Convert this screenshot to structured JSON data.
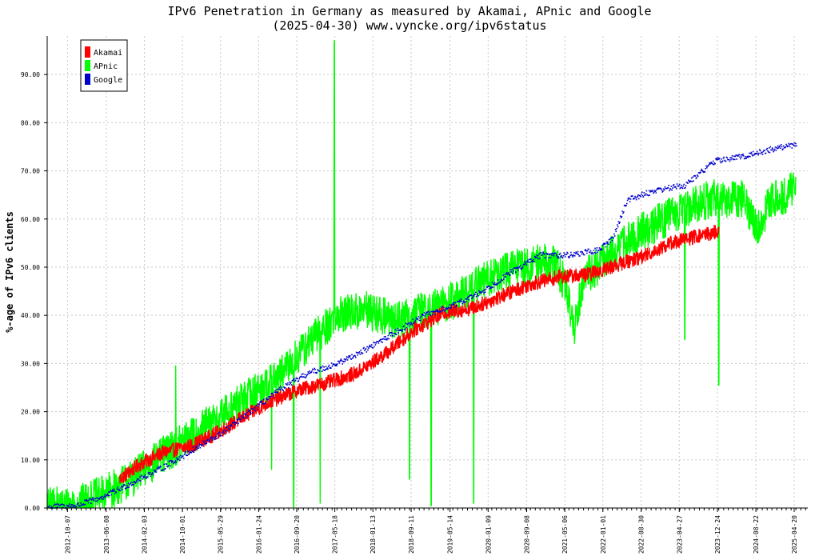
{
  "chart_data": {
    "type": "line",
    "title": "IPv6 Penetration in Germany as measured by Akamai, APnic and Google",
    "subtitle": "(2025-04-30) www.vyncke.org/ipv6status",
    "ylabel": "%-age of IPv6 clients",
    "xlabel": "",
    "x_range": [
      "2012-06-01",
      "2025-07-15"
    ],
    "ylim": [
      0,
      98
    ],
    "y_ticks": [
      "0.00",
      "10.00",
      "20.00",
      "30.00",
      "40.00",
      "50.00",
      "60.00",
      "70.00",
      "80.00",
      "90.00"
    ],
    "x_ticks": [
      "2012-10-07",
      "2013-06-08",
      "2014-02-03",
      "2014-10-01",
      "2015-05-29",
      "2016-01-24",
      "2016-09-20",
      "2017-05-18",
      "2018-01-13",
      "2018-09-11",
      "2019-05-14",
      "2020-01-09",
      "2020-09-08",
      "2021-05-06",
      "2022-01-01",
      "2022-08-30",
      "2023-04-27",
      "2023-12-24",
      "2024-08-22",
      "2025-04-20"
    ],
    "grid": true,
    "legend_position": "top-left",
    "series": [
      {
        "name": "Akamai",
        "color": "#ff0000",
        "style": "line",
        "noise": 1.5,
        "points": [
          [
            "2013-09-01",
            6
          ],
          [
            "2014-01-01",
            9
          ],
          [
            "2014-06-01",
            11.5
          ],
          [
            "2014-12-01",
            13
          ],
          [
            "2015-05-01",
            15.5
          ],
          [
            "2015-10-01",
            18.5
          ],
          [
            "2016-04-01",
            22
          ],
          [
            "2016-10-01",
            24.5
          ],
          [
            "2017-04-01",
            26
          ],
          [
            "2017-10-01",
            28
          ],
          [
            "2018-04-01",
            32
          ],
          [
            "2018-10-01",
            37
          ],
          [
            "2019-04-01",
            40.5
          ],
          [
            "2019-10-01",
            41.5
          ],
          [
            "2020-04-01",
            44
          ],
          [
            "2020-10-01",
            46.5
          ],
          [
            "2021-04-01",
            48
          ],
          [
            "2021-10-01",
            48.5
          ],
          [
            "2022-04-01",
            50.5
          ],
          [
            "2022-10-01",
            52.5
          ],
          [
            "2023-03-01",
            55
          ],
          [
            "2023-09-01",
            56.5
          ],
          [
            "2024-01-01",
            57.5
          ]
        ]
      },
      {
        "name": "APnic",
        "color": "#00ff00",
        "style": "line",
        "noise": 4,
        "points": [
          [
            "2012-06-01",
            0.3
          ],
          [
            "2012-12-01",
            0.6
          ],
          [
            "2013-06-01",
            3
          ],
          [
            "2013-12-01",
            6.5
          ],
          [
            "2014-06-01",
            11
          ],
          [
            "2014-12-01",
            15
          ],
          [
            "2015-06-01",
            19
          ],
          [
            "2015-12-01",
            23.5
          ],
          [
            "2016-06-01",
            27
          ],
          [
            "2016-12-01",
            34
          ],
          [
            "2017-06-01",
            40
          ],
          [
            "2017-12-01",
            41
          ],
          [
            "2018-06-01",
            39
          ],
          [
            "2018-12-01",
            41
          ],
          [
            "2019-06-01",
            43
          ],
          [
            "2019-12-01",
            47
          ],
          [
            "2020-06-01",
            49.5
          ],
          [
            "2020-12-01",
            51
          ],
          [
            "2021-03-01",
            51
          ],
          [
            "2021-05-15",
            46
          ],
          [
            "2021-07-01",
            37
          ],
          [
            "2021-09-01",
            48
          ],
          [
            "2022-01-01",
            51
          ],
          [
            "2022-06-01",
            55.5
          ],
          [
            "2022-12-01",
            59
          ],
          [
            "2023-06-01",
            62
          ],
          [
            "2023-12-01",
            64.5
          ],
          [
            "2024-06-01",
            64
          ],
          [
            "2024-09-01",
            58
          ],
          [
            "2024-12-01",
            64
          ],
          [
            "2025-04-30",
            66
          ]
        ],
        "spikes": [
          [
            "2014-08-20",
            29.5
          ],
          [
            "2016-04-15",
            8
          ],
          [
            "2016-09-01",
            0.2
          ],
          [
            "2017-02-15",
            1
          ],
          [
            "2017-05-15",
            97
          ],
          [
            "2018-09-01",
            6
          ],
          [
            "2019-01-15",
            0.5
          ],
          [
            "2019-10-10",
            1
          ],
          [
            "2023-06-01",
            35
          ],
          [
            "2024-01-01",
            25.5
          ]
        ]
      },
      {
        "name": "Google",
        "color": "#0000cc",
        "style": "dots",
        "noise": 0.6,
        "points": [
          [
            "2012-06-01",
            0.2
          ],
          [
            "2012-12-01",
            0.5
          ],
          [
            "2013-06-01",
            2.5
          ],
          [
            "2013-12-01",
            5.5
          ],
          [
            "2014-06-01",
            8.5
          ],
          [
            "2014-12-01",
            12
          ],
          [
            "2015-06-01",
            15.5
          ],
          [
            "2015-12-01",
            20
          ],
          [
            "2016-06-01",
            24.5
          ],
          [
            "2016-12-01",
            28
          ],
          [
            "2017-06-01",
            30
          ],
          [
            "2017-12-01",
            33
          ],
          [
            "2018-06-01",
            36.5
          ],
          [
            "2018-12-01",
            40
          ],
          [
            "2019-06-01",
            42
          ],
          [
            "2019-12-01",
            45
          ],
          [
            "2020-06-01",
            49
          ],
          [
            "2020-12-01",
            52.5
          ],
          [
            "2021-06-01",
            52.5
          ],
          [
            "2021-12-01",
            53.5
          ],
          [
            "2022-03-01",
            56
          ],
          [
            "2022-06-01",
            64
          ],
          [
            "2022-12-01",
            66
          ],
          [
            "2023-06-01",
            67
          ],
          [
            "2023-12-01",
            72
          ],
          [
            "2024-06-01",
            73
          ],
          [
            "2024-12-01",
            74.5
          ],
          [
            "2025-04-30",
            75.5
          ]
        ]
      }
    ]
  }
}
